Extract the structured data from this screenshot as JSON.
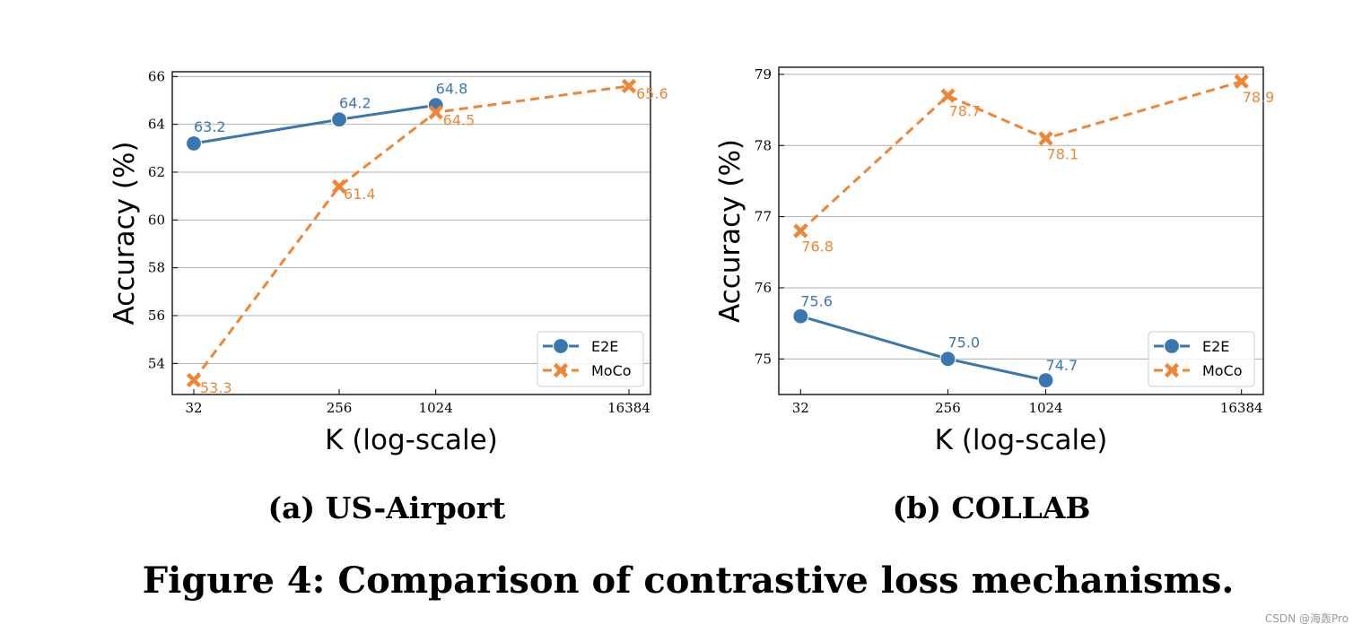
{
  "chart_data": [
    {
      "type": "line",
      "subcaption": "(a) US-Airport",
      "xlabel": "K (log-scale)",
      "ylabel": "Accuracy (%)",
      "x_scale": "log",
      "x_ticks": [
        "32",
        "256",
        "1024",
        "16384"
      ],
      "y_ticks": [
        "54",
        "56",
        "58",
        "60",
        "62",
        "64",
        "66"
      ],
      "ylim": [
        52.7,
        66.2
      ],
      "grid": "horizontal",
      "legend_position": "bottom-right",
      "series": [
        {
          "name": "E2E",
          "color": "#3a76af",
          "style": "solid",
          "marker": "circle",
          "x": [
            32,
            256,
            1024
          ],
          "y": [
            63.2,
            64.2,
            64.8
          ],
          "labels": [
            "63.2",
            "64.2",
            "64.8"
          ]
        },
        {
          "name": "MoCo",
          "color": "#ef8636",
          "style": "dashed",
          "marker": "x",
          "x": [
            32,
            256,
            1024,
            16384
          ],
          "y": [
            53.3,
            61.4,
            64.5,
            65.6
          ],
          "labels": [
            "53.3",
            "61.4",
            "64.5",
            "65.6"
          ]
        }
      ]
    },
    {
      "type": "line",
      "subcaption": "(b) COLLAB",
      "xlabel": "K (log-scale)",
      "ylabel": "Accuracy (%)",
      "x_scale": "log",
      "x_ticks": [
        "32",
        "256",
        "1024",
        "16384"
      ],
      "y_ticks": [
        "75",
        "76",
        "77",
        "78",
        "79"
      ],
      "ylim": [
        74.5,
        79.1
      ],
      "grid": "horizontal",
      "legend_position": "bottom-right",
      "series": [
        {
          "name": "E2E",
          "color": "#3a76af",
          "style": "solid",
          "marker": "circle",
          "x": [
            32,
            256,
            1024
          ],
          "y": [
            75.6,
            75.0,
            74.7
          ],
          "labels": [
            "75.6",
            "75.0",
            "74.7"
          ]
        },
        {
          "name": "MoCo",
          "color": "#ef8636",
          "style": "dashed",
          "marker": "x",
          "x": [
            32,
            256,
            1024,
            16384
          ],
          "y": [
            76.8,
            78.7,
            78.1,
            78.9
          ],
          "labels": [
            "76.8",
            "78.7",
            "78.1",
            "78.9"
          ]
        }
      ]
    }
  ],
  "caption": "Figure 4: Comparison of contrastive loss mechanisms.",
  "watermark": "CSDN @海轰Pro"
}
